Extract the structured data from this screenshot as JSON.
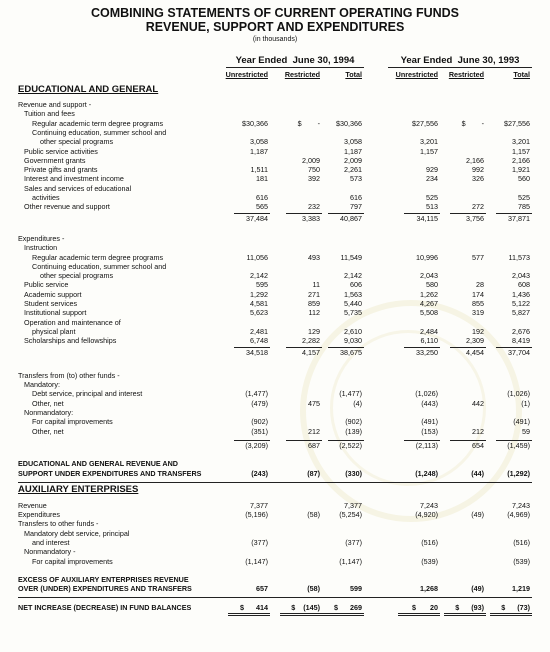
{
  "header": {
    "title": "COMBINING STATEMENTS OF CURRENT OPERATING FUNDS",
    "subtitle": "REVENUE, SUPPORT AND EXPENDITURES",
    "note": "(in thousands)"
  },
  "columns": {
    "years": [
      "Year Ended  June 30, 1994",
      "Year Ended  June 30, 1993"
    ],
    "subheads": [
      "Unrestricted",
      "Restricted",
      "Total"
    ]
  },
  "sections": [
    {
      "heading": "EDUCATIONAL AND GENERAL",
      "rows": [
        {
          "label": "Revenue and support -"
        },
        {
          "label": "Tuition and fees"
        },
        {
          "label": "Regular academic term degree programs",
          "values": [
            "$30,366",
            "$        -",
            "$30,366",
            "$27,556",
            "$        -",
            "$27,556"
          ]
        },
        {
          "label": "Continuing education, summer school and"
        },
        {
          "label": "other special programs",
          "values": [
            "3,058",
            null,
            "3,058",
            "3,201",
            null,
            "3,201"
          ]
        },
        {
          "label": "Public service activities",
          "values": [
            "1,187",
            null,
            "1,187",
            "1,157",
            null,
            "1,157"
          ]
        },
        {
          "label": "Government grants",
          "values": [
            null,
            "2,009",
            "2,009",
            null,
            "2,166",
            "2,166"
          ]
        },
        {
          "label": "Private gifts and grants",
          "values": [
            "1,511",
            "750",
            "2,261",
            "929",
            "992",
            "1,921"
          ]
        },
        {
          "label": "Interest and investment income",
          "values": [
            "181",
            "392",
            "573",
            "234",
            "326",
            "560"
          ]
        },
        {
          "label": "Sales and services of educational"
        },
        {
          "label": "activities",
          "values": [
            "616",
            null,
            "616",
            "525",
            null,
            "525"
          ]
        },
        {
          "label": "Other revenue and support",
          "values": [
            "565",
            "232",
            "797",
            "513",
            "272",
            "785"
          ]
        },
        {
          "values": [
            "37,484",
            "3,383",
            "40,867",
            "34,115",
            "3,756",
            "37,871"
          ]
        },
        {
          "label": "Expenditures -"
        },
        {
          "label": "Instruction"
        },
        {
          "label": "Regular academic term degree programs",
          "values": [
            "11,056",
            "493",
            "11,549",
            "10,996",
            "577",
            "11,573"
          ]
        },
        {
          "label": "Continuing education, summer school and"
        },
        {
          "label": "other special programs",
          "values": [
            "2,142",
            null,
            "2,142",
            "2,043",
            null,
            "2,043"
          ]
        },
        {
          "label": "Public service",
          "values": [
            "595",
            "11",
            "606",
            "580",
            "28",
            "608"
          ]
        },
        {
          "label": "Academic support",
          "values": [
            "1,292",
            "271",
            "1,563",
            "1,262",
            "174",
            "1,436"
          ]
        },
        {
          "label": "Student services",
          "values": [
            "4,581",
            "859",
            "5,440",
            "4,267",
            "855",
            "5,122"
          ]
        },
        {
          "label": "Institutional support",
          "values": [
            "5,623",
            "112",
            "5,735",
            "5,508",
            "319",
            "5,827"
          ]
        },
        {
          "label": "Operation and maintenance of"
        },
        {
          "label": "physical plant",
          "values": [
            "2,481",
            "129",
            "2,610",
            "2,484",
            "192",
            "2,676"
          ]
        },
        {
          "label": "Scholarships and fellowships",
          "values": [
            "6,748",
            "2,282",
            "9,030",
            "6,110",
            "2,309",
            "8,419"
          ]
        },
        {
          "values": [
            "34,518",
            "4,157",
            "38,675",
            "33,250",
            "4,454",
            "37,704"
          ]
        },
        {
          "label": "Transfers from (to) other funds -"
        },
        {
          "label": "Mandatory:"
        },
        {
          "label": "Debt service, principal and interest",
          "values": [
            "(1,477)",
            null,
            "(1,477)",
            "(1,026)",
            null,
            "(1,026)"
          ]
        },
        {
          "label": "Other, net",
          "values": [
            "(479)",
            "475",
            "(4)",
            "(443)",
            "442",
            "(1)"
          ]
        },
        {
          "label": "Nonmandatory:"
        },
        {
          "label": "For capital improvements",
          "values": [
            "(902)",
            null,
            "(902)",
            "(491)",
            null,
            "(491)"
          ]
        },
        {
          "label": "Other, net",
          "values": [
            "(351)",
            "212",
            "(139)",
            "(153)",
            "212",
            "59"
          ]
        },
        {
          "values": [
            "(3,209)",
            "687",
            "(2,522)",
            "(2,113)",
            "654",
            "(1,459)"
          ]
        },
        {
          "label": "EDUCATIONAL AND GENERAL REVENUE AND"
        },
        {
          "label": "SUPPORT UNDER EXPENDITURES AND TRANSFERS",
          "values": [
            "(243)",
            "(87)",
            "(330)",
            "(1,248)",
            "(44)",
            "(1,292)"
          ]
        }
      ]
    },
    {
      "heading": "AUXILIARY ENTERPRISES",
      "rows": [
        {
          "label": "Revenue",
          "values": [
            "7,377",
            null,
            "7,377",
            "7,243",
            null,
            "7,243"
          ]
        },
        {
          "label": "Expenditures",
          "values": [
            "(5,196)",
            "(58)",
            "(5,254)",
            "(4,920)",
            "(49)",
            "(4,969)"
          ]
        },
        {
          "label": "Transfers to other funds -"
        },
        {
          "label": "Mandatory debt service, principal"
        },
        {
          "label": "and interest",
          "values": [
            "(377)",
            null,
            "(377)",
            "(516)",
            null,
            "(516)"
          ]
        },
        {
          "label": "Nonmandatory -"
        },
        {
          "label": "For capital improvements",
          "values": [
            "(1,147)",
            null,
            "(1,147)",
            "(539)",
            null,
            "(539)"
          ]
        },
        {
          "label": "EXCESS OF AUXILIARY ENTERPRISES REVENUE"
        },
        {
          "label": "OVER (UNDER) EXPENDITURES AND TRANSFERS",
          "values": [
            "657",
            "(58)",
            "599",
            "1,268",
            "(49)",
            "1,219"
          ]
        }
      ]
    }
  ],
  "net_increase": {
    "label": "NET INCREASE (DECREASE) IN FUND BALANCES",
    "values": [
      "$      414",
      "$    (145)",
      "$      269",
      "$       20",
      "$      (93)",
      "$      (73)"
    ]
  }
}
